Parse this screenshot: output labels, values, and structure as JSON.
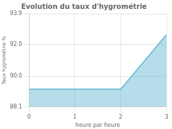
{
  "chart_data": {
    "type": "area",
    "title": "Evolution du taux d'hygrométrie",
    "x_label": "heure par heure",
    "y_label": "Taux hygrométrie %",
    "x": [
      0,
      2,
      3
    ],
    "values": [
      89.2,
      89.2,
      92.6
    ],
    "color": "#5ab4d0",
    "xlim": [
      0,
      3
    ],
    "ylim": [
      88.1,
      93.9
    ],
    "xticks": [
      0,
      1,
      2,
      3
    ],
    "yticks": [
      88.1,
      {
        "value": 90.0,
        "label": "90.0"
      },
      {
        "value": 92.0,
        "label": "92.0"
      },
      93.9
    ],
    "grid": true
  }
}
